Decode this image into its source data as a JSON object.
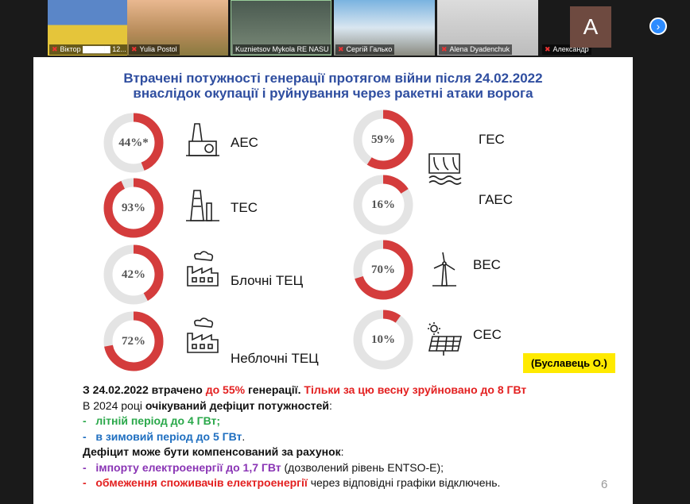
{
  "participants": [
    {
      "name": "Віктор ▇▇▇▇▇ 12...",
      "muted": true
    },
    {
      "name": "Yulia Postol",
      "muted": true
    },
    {
      "name": "Kuznietsov Mykola  RE NASU",
      "muted": false
    },
    {
      "name": "Сергій Галько",
      "muted": true
    },
    {
      "name": "Alena Dyadenchuk",
      "muted": true
    },
    {
      "name": "Александр",
      "muted": true,
      "avatar_letter": "A"
    }
  ],
  "slide": {
    "title_line1": "Втрачені потужності генерації протягом війни після 24.02.2022",
    "title_line2": "внаслідок окупації і руйнування через ракетні атаки ворога",
    "items": [
      {
        "label": "АЕС",
        "value": 44,
        "display": "44%*",
        "icon": "nuclear-plant-icon"
      },
      {
        "label": "ТЕС",
        "value": 93,
        "display": "93%",
        "icon": "thermal-plant-icon"
      },
      {
        "label": "Блочні ТЕЦ",
        "value": 42,
        "display": "42%",
        "icon": "chp-factory-icon"
      },
      {
        "label": "Неблочні ТЕЦ",
        "value": 72,
        "display": "72%",
        "icon": "chp-factory-icon"
      },
      {
        "label": "ГЕС",
        "value": 59,
        "display": "59%",
        "icon": "hydro-dam-icon"
      },
      {
        "label": "ГАЕС",
        "value": 16,
        "display": "16%",
        "icon": "hydro-dam-icon"
      },
      {
        "label": "ВЕС",
        "value": 70,
        "display": "70%",
        "icon": "wind-turbine-icon"
      },
      {
        "label": "СЕС",
        "value": 10,
        "display": "10%",
        "icon": "solar-panel-icon"
      }
    ],
    "author": "(Буславець О.)",
    "l1a": "З 24.02.2022 ",
    "l1b": "втрачено ",
    "l1c": "до 55%",
    "l1d": " генерації. ",
    "l1e": "Тільки за цю весну зруйновано до 8 ГВт",
    "l2a": "В 2024 році ",
    "l2b": "очікуваний дефіцит потужностей",
    ":": ":",
    "l3": "літній період до 4 ГВт;",
    "l4a": "в зимовий період до 5 ГВт",
    "l4b": ".",
    "l5a": "Дефіцит може бути компенсований за рахунок",
    "l5b": ":",
    "l6a": "імпорту електроенергії до 1,7 ГВт",
    "l6b": " (дозволений рівень ENTSO-E);",
    "l7a": "обмеження споживачів електроенергії",
    "l7b": " через відповідні графіки відключень.",
    "dash": "-",
    "page": "6"
  },
  "colors": {
    "red": "#d43c3c",
    "gray": "#e4e4e4",
    "title": "#2f4ea0"
  }
}
